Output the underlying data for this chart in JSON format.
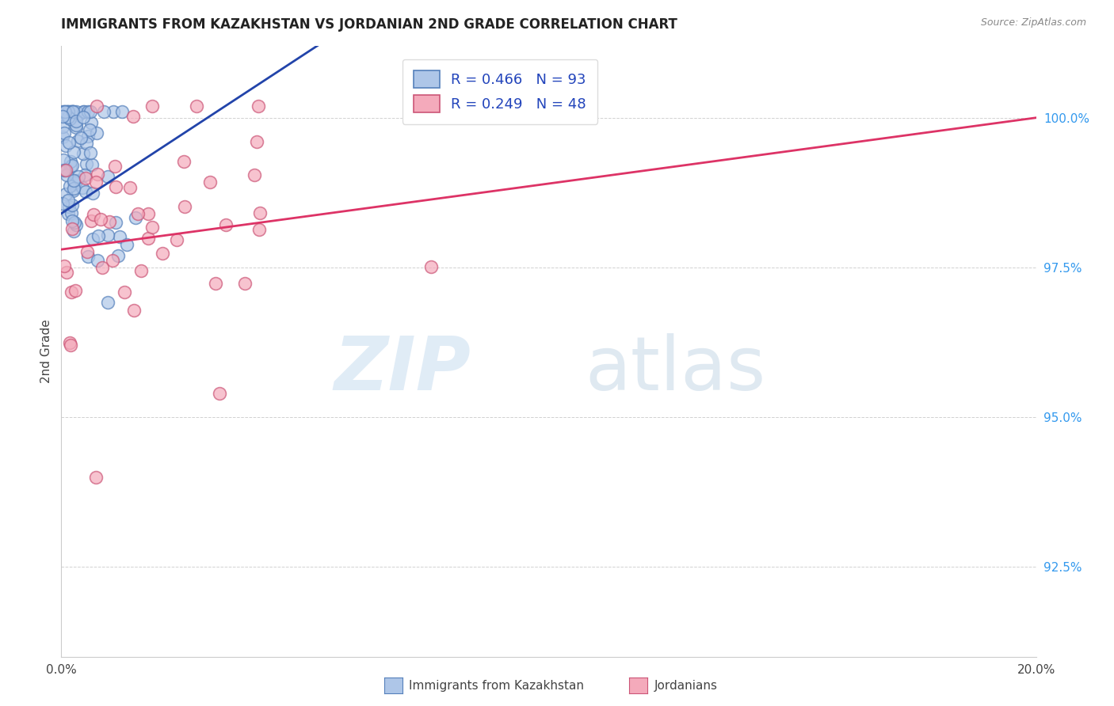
{
  "title": "IMMIGRANTS FROM KAZAKHSTAN VS JORDANIAN 2ND GRADE CORRELATION CHART",
  "source": "Source: ZipAtlas.com",
  "ylabel": "2nd Grade",
  "y_ticks": [
    92.5,
    95.0,
    97.5,
    100.0
  ],
  "y_tick_labels": [
    "92.5%",
    "95.0%",
    "97.5%",
    "100.0%"
  ],
  "x_range": [
    0.0,
    20.0
  ],
  "y_range": [
    91.0,
    101.2
  ],
  "series1_color": "#aec6e8",
  "series1_edge": "#5580bb",
  "series2_color": "#f4aabb",
  "series2_edge": "#cc5577",
  "trendline1_color": "#2244aa",
  "trendline2_color": "#dd3366",
  "watermark_zip": "ZIP",
  "watermark_atlas": "atlas",
  "legend_R1": "R = 0.466",
  "legend_N1": "N = 93",
  "legend_R2": "R = 0.249",
  "legend_N2": "N = 48",
  "bottom_label1": "Immigrants from Kazakhstan",
  "bottom_label2": "Jordanians",
  "title_fontsize": 12,
  "source_fontsize": 9,
  "tick_fontsize": 11,
  "legend_fontsize": 13
}
